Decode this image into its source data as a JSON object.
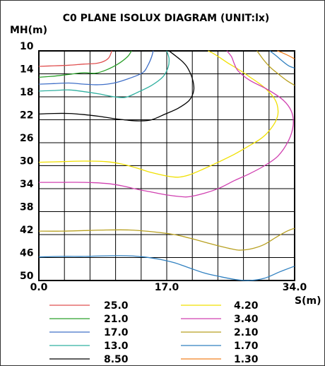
{
  "chart_data": {
    "type": "line",
    "title": "C0 PLANE ISOLUX DIAGRAM (UNIT:lx)",
    "ylabel": "MH(m)",
    "xlabel": "S(m)",
    "x_ticks": [
      "0.0",
      "17.0",
      "34.0"
    ],
    "y_ticks": [
      "10",
      "14",
      "18",
      "22",
      "26",
      "30",
      "34",
      "38",
      "42",
      "46",
      "50"
    ],
    "xlim": [
      0,
      34
    ],
    "ylim": [
      10,
      50
    ],
    "y_inverted": true,
    "grid": true,
    "legend_placement": "bottom, two columns",
    "series": [
      {
        "name": "25.0",
        "color": "#e05050",
        "points": [
          [
            0,
            12.7
          ],
          [
            2,
            12.6
          ],
          [
            4,
            12.5
          ],
          [
            6,
            12.3
          ],
          [
            7.5,
            12.2
          ],
          [
            8.5,
            11.9
          ],
          [
            9.3,
            11.2
          ],
          [
            9.7,
            10.0
          ]
        ]
      },
      {
        "name": "21.0",
        "color": "#2aa02a",
        "points": [
          [
            0,
            14.6
          ],
          [
            2,
            14.4
          ],
          [
            4,
            14.1
          ],
          [
            6,
            13.8
          ],
          [
            7.5,
            13.9
          ],
          [
            9,
            13.3
          ],
          [
            10.5,
            12.3
          ],
          [
            11.8,
            11.0
          ],
          [
            12.3,
            10.0
          ]
        ]
      },
      {
        "name": "17.0",
        "color": "#4070c8",
        "points": [
          [
            0,
            15.8
          ],
          [
            2,
            15.7
          ],
          [
            4,
            15.6
          ],
          [
            6,
            15.8
          ],
          [
            8,
            15.9
          ],
          [
            10,
            15.6
          ],
          [
            12,
            14.8
          ],
          [
            13.8,
            13.8
          ],
          [
            14.5,
            12.5
          ],
          [
            15,
            11
          ],
          [
            15.2,
            10
          ]
        ]
      },
      {
        "name": "13.0",
        "color": "#30b0a0",
        "points": [
          [
            0,
            17.0
          ],
          [
            2,
            16.9
          ],
          [
            4,
            16.8
          ],
          [
            6,
            17.1
          ],
          [
            8,
            17.5
          ],
          [
            10,
            18.0
          ],
          [
            11.5,
            18.1
          ],
          [
            13,
            17.3
          ],
          [
            15,
            16
          ],
          [
            16.5,
            14.5
          ],
          [
            17.2,
            12.8
          ],
          [
            17.3,
            11.3
          ],
          [
            17,
            10
          ]
        ]
      },
      {
        "name": "8.50",
        "color": "#000000",
        "points": [
          [
            0,
            21.0
          ],
          [
            2,
            20.9
          ],
          [
            4,
            20.9
          ],
          [
            6,
            21.1
          ],
          [
            8,
            21.4
          ],
          [
            10,
            21.8
          ],
          [
            12,
            22.1
          ],
          [
            13.5,
            22.2
          ],
          [
            15,
            22.0
          ],
          [
            16.8,
            21.0
          ],
          [
            18.5,
            20.0
          ],
          [
            20,
            18.6
          ],
          [
            20.6,
            16.8
          ],
          [
            20.4,
            14.8
          ],
          [
            19.8,
            13.0
          ],
          [
            19.2,
            12.0
          ],
          [
            18.3,
            11.0
          ],
          [
            17.3,
            10.0
          ]
        ]
      },
      {
        "name": "4.20",
        "color": "#f0e000",
        "points": [
          [
            0,
            29.4
          ],
          [
            3,
            29.3
          ],
          [
            6,
            29.2
          ],
          [
            9,
            29.3
          ],
          [
            11,
            29.7
          ],
          [
            13,
            30.4
          ],
          [
            15,
            31.2
          ],
          [
            17,
            31.8
          ],
          [
            18.5,
            32.0
          ],
          [
            20,
            31.6
          ],
          [
            22,
            30.5
          ],
          [
            24,
            29.3
          ],
          [
            26,
            28.0
          ],
          [
            28,
            26.5
          ],
          [
            29.5,
            25.3
          ],
          [
            30.5,
            24.1
          ],
          [
            31.5,
            22.2
          ],
          [
            31.8,
            20.5
          ],
          [
            31.4,
            18.5
          ],
          [
            30,
            16.4
          ],
          [
            28,
            14.5
          ],
          [
            26.5,
            13.2
          ],
          [
            25,
            12.0
          ],
          [
            23.4,
            10.6
          ],
          [
            22.5,
            10.0
          ]
        ]
      },
      {
        "name": "3.40",
        "color": "#d040b0",
        "points": [
          [
            0,
            32.9
          ],
          [
            3,
            32.9
          ],
          [
            6,
            32.9
          ],
          [
            9,
            33.1
          ],
          [
            11,
            33.5
          ],
          [
            13,
            34.1
          ],
          [
            15,
            34.6
          ],
          [
            17,
            35.1
          ],
          [
            19,
            35.4
          ],
          [
            20,
            35.4
          ],
          [
            22,
            34.8
          ],
          [
            24,
            33.9
          ],
          [
            26,
            32.6
          ],
          [
            28,
            31.4
          ],
          [
            30,
            30.0
          ],
          [
            31.8,
            28.3
          ],
          [
            33.2,
            25.6
          ],
          [
            33.8,
            23.0
          ],
          [
            33.6,
            20.6
          ],
          [
            32.5,
            18.6
          ],
          [
            30.5,
            16.8
          ],
          [
            28,
            15.1
          ],
          [
            26.5,
            13.5
          ],
          [
            26,
            12.3
          ],
          [
            25.6,
            11.0
          ],
          [
            25,
            10.0
          ]
        ]
      },
      {
        "name": "2.10",
        "color": "#b8a020",
        "points": [
          [
            0,
            41.4
          ],
          [
            3,
            41.4
          ],
          [
            6,
            41.3
          ],
          [
            9,
            41.2
          ],
          [
            12,
            41.2
          ],
          [
            15,
            41.5
          ],
          [
            18,
            42.0
          ],
          [
            20,
            42.6
          ],
          [
            22,
            43.3
          ],
          [
            24,
            44.0
          ],
          [
            26,
            44.6
          ],
          [
            27,
            44.7
          ],
          [
            28.5,
            44.4
          ],
          [
            30,
            43.7
          ],
          [
            31.5,
            42.5
          ],
          [
            33,
            41.4
          ],
          [
            34,
            40.9
          ]
        ]
      },
      {
        "name": "1.70",
        "color": "#3080c0",
        "points": [
          [
            0,
            45.9
          ],
          [
            3,
            45.8
          ],
          [
            6,
            45.8
          ],
          [
            9,
            45.7
          ],
          [
            12,
            45.7
          ],
          [
            14,
            45.9
          ],
          [
            16,
            46.3
          ],
          [
            18,
            46.9
          ],
          [
            20,
            47.8
          ],
          [
            22,
            48.7
          ],
          [
            24,
            49.3
          ],
          [
            26,
            49.8
          ],
          [
            28,
            50.0
          ],
          [
            30,
            49.6
          ],
          [
            32,
            48.5
          ],
          [
            34,
            47.5
          ]
        ]
      },
      {
        "name": "1.30",
        "color": "#f08020",
        "points": [
          [
            31.7,
            10.0
          ],
          [
            32.5,
            10.4
          ],
          [
            33.3,
            10.9
          ],
          [
            34,
            11.4
          ]
        ]
      }
    ],
    "extra_contours": [
      {
        "color": "#b8a020",
        "points": [
          [
            29,
            10.0
          ],
          [
            29.9,
            11.6
          ],
          [
            30.8,
            12.9
          ],
          [
            32,
            14.2
          ],
          [
            33,
            15.2
          ],
          [
            34,
            16.0
          ]
        ]
      },
      {
        "color": "#3080c0",
        "points": [
          [
            30.7,
            10.0
          ],
          [
            31.5,
            10.8
          ],
          [
            32.3,
            11.7
          ],
          [
            33.2,
            12.6
          ],
          [
            34,
            13.0
          ]
        ]
      }
    ]
  }
}
